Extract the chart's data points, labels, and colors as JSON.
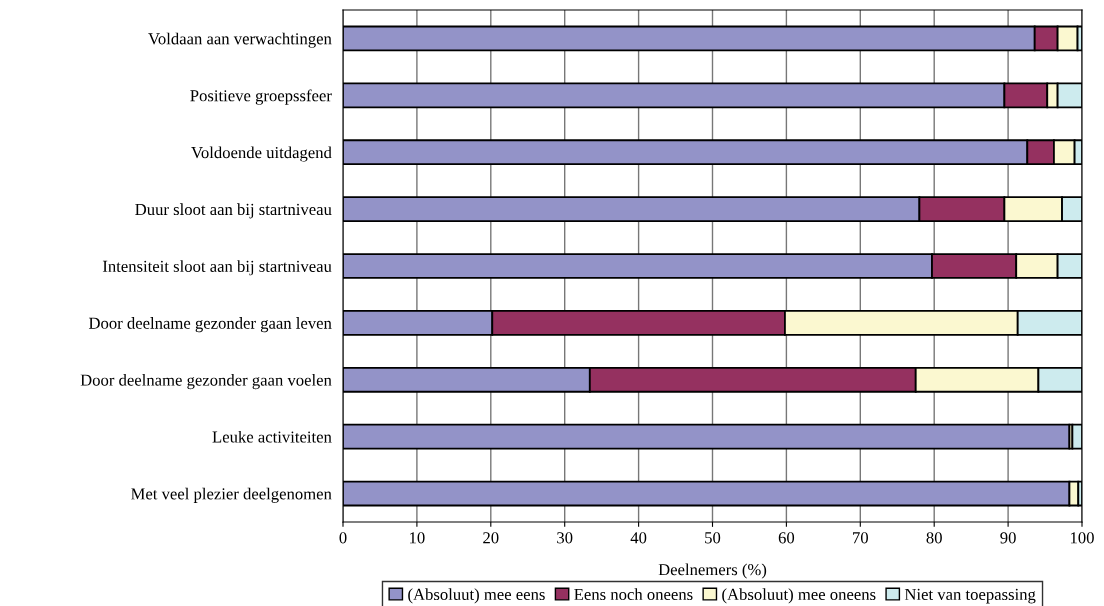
{
  "chart_data": {
    "type": "bar",
    "orientation": "horizontal",
    "stacked": true,
    "categories": [
      "Voldaan aan verwachtingen",
      "Positieve groepssfeer",
      "Voldoende uitdagend",
      "Duur sloot aan bij startniveau",
      "Intensiteit sloot aan bij startniveau",
      "Door deelname gezonder gaan leven",
      "Door deelname gezonder gaan voelen",
      "Leuke activiteiten",
      "Met veel plezier deelgenomen"
    ],
    "series": [
      {
        "name": "(Absoluut) mee eens",
        "color": "#9393c8",
        "values": [
          93.6,
          89.5,
          92.6,
          78.0,
          79.7,
          20.2,
          33.4,
          98.3,
          98.3
        ]
      },
      {
        "name": "Eens noch oneens",
        "color": "#953160",
        "values": [
          3.1,
          5.8,
          3.6,
          11.5,
          11.4,
          39.6,
          44.1,
          0,
          0
        ]
      },
      {
        "name": "(Absoluut) mee oneens",
        "color": "#fbf8d0",
        "values": [
          2.7,
          1.4,
          2.8,
          7.8,
          5.6,
          31.5,
          16.6,
          0.4,
          1.2
        ]
      },
      {
        "name": "Niet van toepassing",
        "color": "#cdebee",
        "values": [
          0.6,
          3.3,
          1.0,
          2.7,
          3.3,
          8.7,
          5.9,
          1.3,
          0.5
        ]
      }
    ],
    "xlabel": "Deelnemers (%)",
    "xlim": [
      0,
      100
    ],
    "xticks": [
      0,
      10,
      20,
      30,
      40,
      50,
      60,
      70,
      80,
      90,
      100
    ],
    "grid": "x",
    "legend": "bottom"
  }
}
